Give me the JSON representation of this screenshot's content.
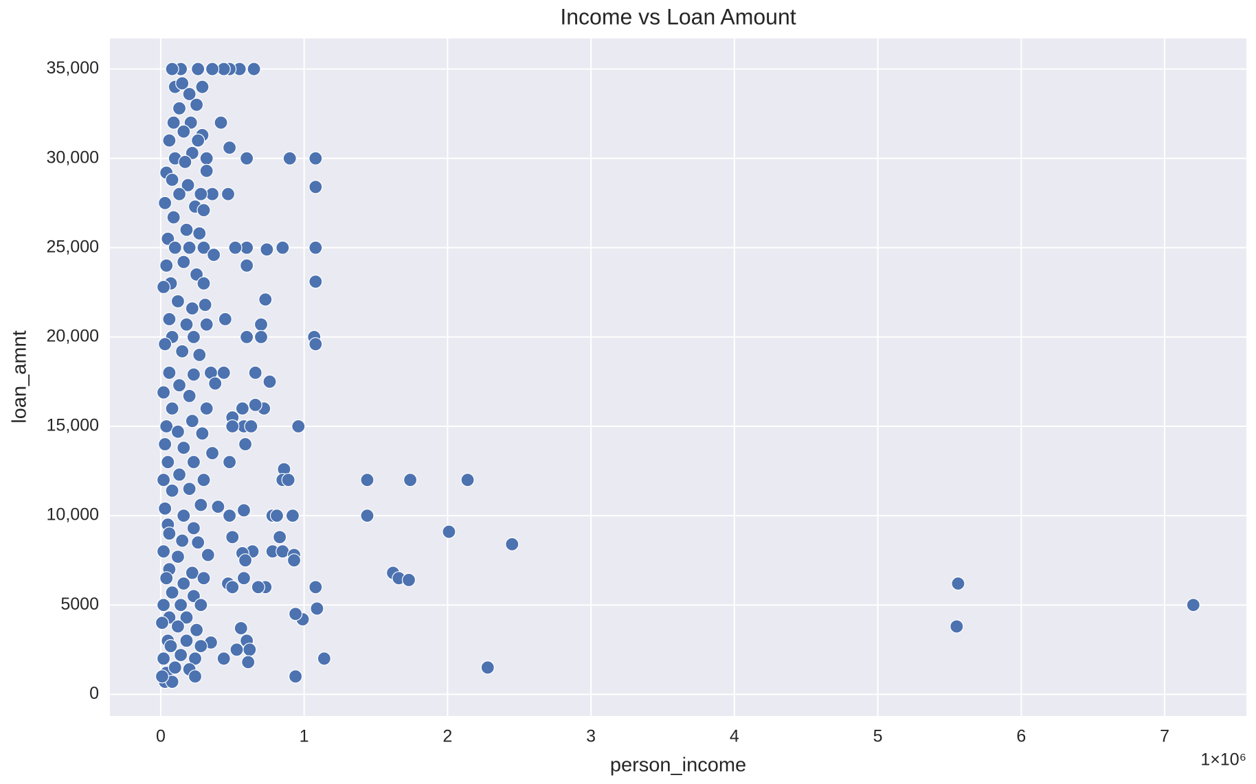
{
  "chart_data": {
    "type": "scatter",
    "title": "Income vs Loan Amount",
    "x_label": "person_income",
    "y_label": "loan_amnt",
    "x_offset_label": "1×10⁶",
    "color": "#4c72b0",
    "edge_color": "#ffffff",
    "background": "#eaeaf2",
    "grid": true,
    "xlim": [
      -354000,
      7570000
    ],
    "ylim": [
      -1216,
      36712
    ],
    "xticks": [
      0,
      {
        "value": 1000000,
        "label": "1"
      },
      {
        "value": 2000000,
        "label": "2"
      },
      {
        "value": 3000000,
        "label": "3"
      },
      {
        "value": 4000000,
        "label": "4"
      },
      {
        "value": 5000000,
        "label": "5"
      },
      {
        "value": 6000000,
        "label": "6"
      },
      {
        "value": 7000000,
        "label": "7"
      }
    ],
    "yticks": [
      0,
      5000,
      {
        "value": 10000,
        "label": "10,000"
      },
      {
        "value": 15000,
        "label": "15,000"
      },
      {
        "value": 20000,
        "label": "20,000"
      },
      {
        "value": 25000,
        "label": "25,000"
      },
      {
        "value": 30000,
        "label": "30,000"
      },
      {
        "value": 35000,
        "label": "35,000"
      }
    ],
    "x": [
      900000,
      1080000,
      1080000,
      850000,
      1080000,
      1080000,
      1070000,
      1080000,
      960000,
      1440000,
      1740000,
      2140000,
      1440000,
      2010000,
      2450000,
      1620000,
      1660000,
      1730000,
      5560000,
      5550000,
      7200000,
      2280000,
      1140000,
      940000,
      1080000,
      1090000,
      990000,
      940000,
      860000,
      850000,
      890000,
      920000,
      780000,
      810000,
      830000,
      780000,
      850000,
      930000,
      930000,
      730000,
      680000,
      650000,
      550000,
      480000,
      440000,
      360000,
      260000,
      140000,
      420000,
      480000,
      600000,
      470000,
      360000,
      740000,
      600000,
      520000,
      730000,
      700000,
      700000,
      600000,
      450000,
      660000,
      760000,
      720000,
      660000,
      570000,
      500000,
      580000,
      630000,
      590000,
      580000,
      640000,
      570000,
      590000,
      580000,
      560000,
      600000,
      620000,
      530000,
      610000,
      440000,
      470000,
      500000,
      500000,
      480000,
      400000,
      480000,
      500000,
      440000,
      350000,
      600000,
      80000,
      100000,
      150000,
      200000,
      290000,
      130000,
      250000,
      90000,
      210000,
      290000,
      60000,
      160000,
      260000,
      100000,
      220000,
      320000,
      40000,
      170000,
      320000,
      80000,
      190000,
      280000,
      30000,
      130000,
      240000,
      300000,
      90000,
      180000,
      270000,
      50000,
      100000,
      200000,
      300000,
      370000,
      40000,
      160000,
      250000,
      70000,
      300000,
      20000,
      120000,
      220000,
      310000,
      60000,
      180000,
      320000,
      80000,
      230000,
      30000,
      150000,
      270000,
      60000,
      230000,
      130000,
      380000,
      20000,
      200000,
      80000,
      320000,
      40000,
      220000,
      120000,
      290000,
      30000,
      160000,
      360000,
      50000,
      230000,
      20000,
      130000,
      300000,
      80000,
      200000,
      30000,
      160000,
      280000,
      50000,
      230000,
      60000,
      150000,
      260000,
      20000,
      120000,
      330000,
      60000,
      220000,
      40000,
      160000,
      300000,
      80000,
      230000,
      20000,
      140000,
      280000,
      60000,
      180000,
      10000,
      120000,
      250000,
      50000,
      180000,
      350000,
      70000,
      280000,
      20000,
      140000,
      240000,
      40000,
      100000,
      200000,
      30000,
      80000,
      240000,
      10000
    ],
    "values": [
      30000,
      30000,
      28400,
      25000,
      25000,
      23100,
      20000,
      19600,
      15000,
      12000,
      12000,
      12000,
      10000,
      9100,
      8400,
      6800,
      6500,
      6400,
      6200,
      3800,
      5000,
      1500,
      2000,
      1000,
      6000,
      4800,
      4200,
      4500,
      12600,
      12000,
      12000,
      10000,
      10000,
      10000,
      8800,
      8000,
      8000,
      7800,
      7500,
      6000,
      6000,
      35000,
      35000,
      35000,
      35000,
      35000,
      35000,
      35000,
      32000,
      30600,
      30000,
      28000,
      28000,
      24900,
      25000,
      25000,
      22100,
      20700,
      20000,
      20000,
      21000,
      18000,
      17500,
      16000,
      16200,
      16000,
      15500,
      15000,
      15000,
      14000,
      10300,
      8000,
      7900,
      7500,
      6500,
      3700,
      3000,
      2500,
      2500,
      1800,
      2000,
      6200,
      6000,
      8800,
      10000,
      10500,
      13000,
      15000,
      18000,
      18000,
      24000,
      35000,
      34000,
      34200,
      33600,
      34000,
      32800,
      33000,
      32000,
      32000,
      31300,
      31000,
      31500,
      31000,
      30000,
      30300,
      30000,
      29200,
      29800,
      29300,
      28800,
      28500,
      28000,
      27500,
      28000,
      27300,
      27100,
      26700,
      26000,
      25800,
      25500,
      25000,
      25000,
      25000,
      24600,
      24000,
      24200,
      23500,
      23000,
      23000,
      22800,
      22000,
      21600,
      21800,
      21000,
      20700,
      20700,
      20000,
      20000,
      19600,
      19200,
      19000,
      18000,
      17900,
      17300,
      17400,
      16900,
      16700,
      16000,
      16000,
      15000,
      15300,
      14700,
      14600,
      14000,
      13800,
      13500,
      13000,
      13000,
      12000,
      12300,
      12000,
      11400,
      11500,
      10400,
      10000,
      10600,
      9500,
      9300,
      9000,
      8600,
      8500,
      8000,
      7700,
      7800,
      7000,
      6800,
      6500,
      6200,
      6500,
      5700,
      5500,
      5000,
      5000,
      5000,
      4300,
      4300,
      4000,
      3800,
      3600,
      3000,
      3000,
      2900,
      2700,
      2700,
      2000,
      2200,
      2000,
      1200,
      1500,
      1400,
      700,
      700,
      1000,
      1000
    ]
  }
}
